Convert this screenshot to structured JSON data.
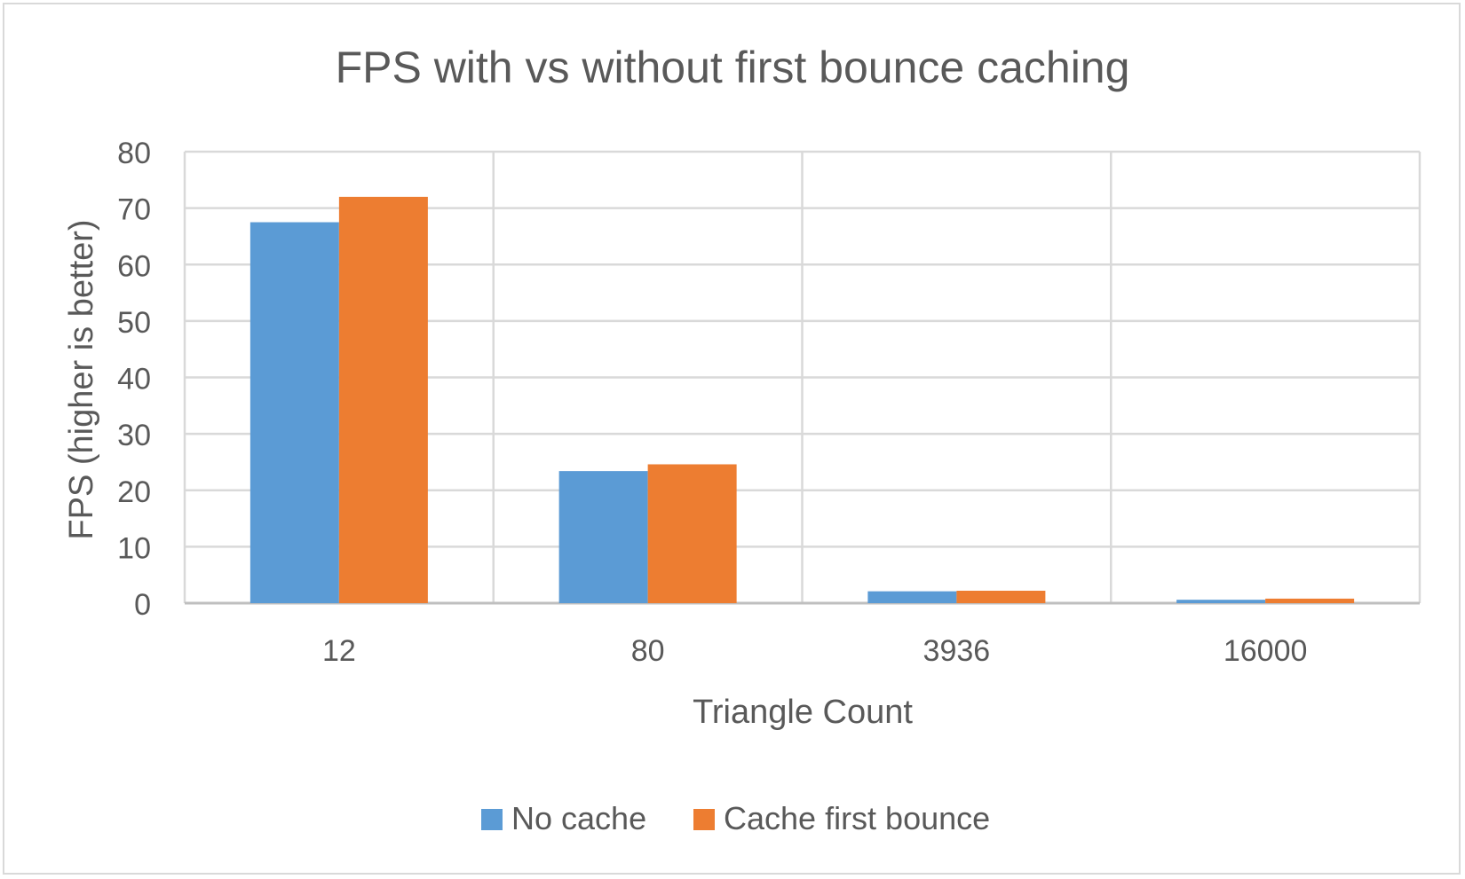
{
  "chart_data": {
    "type": "bar",
    "title": "FPS with vs without first bounce caching",
    "xlabel": "Triangle Count",
    "ylabel": "FPS (higher is better)",
    "categories": [
      "12",
      "80",
      "3936",
      "16000"
    ],
    "series": [
      {
        "name": "No cache",
        "values": [
          67.5,
          23.4,
          2.1,
          0.6
        ],
        "color": "#5b9bd5"
      },
      {
        "name": "Cache first bounce",
        "values": [
          72.0,
          24.6,
          2.2,
          0.8
        ],
        "color": "#ed7d31"
      }
    ],
    "ylim": [
      0,
      80
    ],
    "yticks": [
      "0",
      "10",
      "20",
      "30",
      "40",
      "50",
      "60",
      "70",
      "80"
    ],
    "grid": true,
    "legend": "bottom"
  }
}
